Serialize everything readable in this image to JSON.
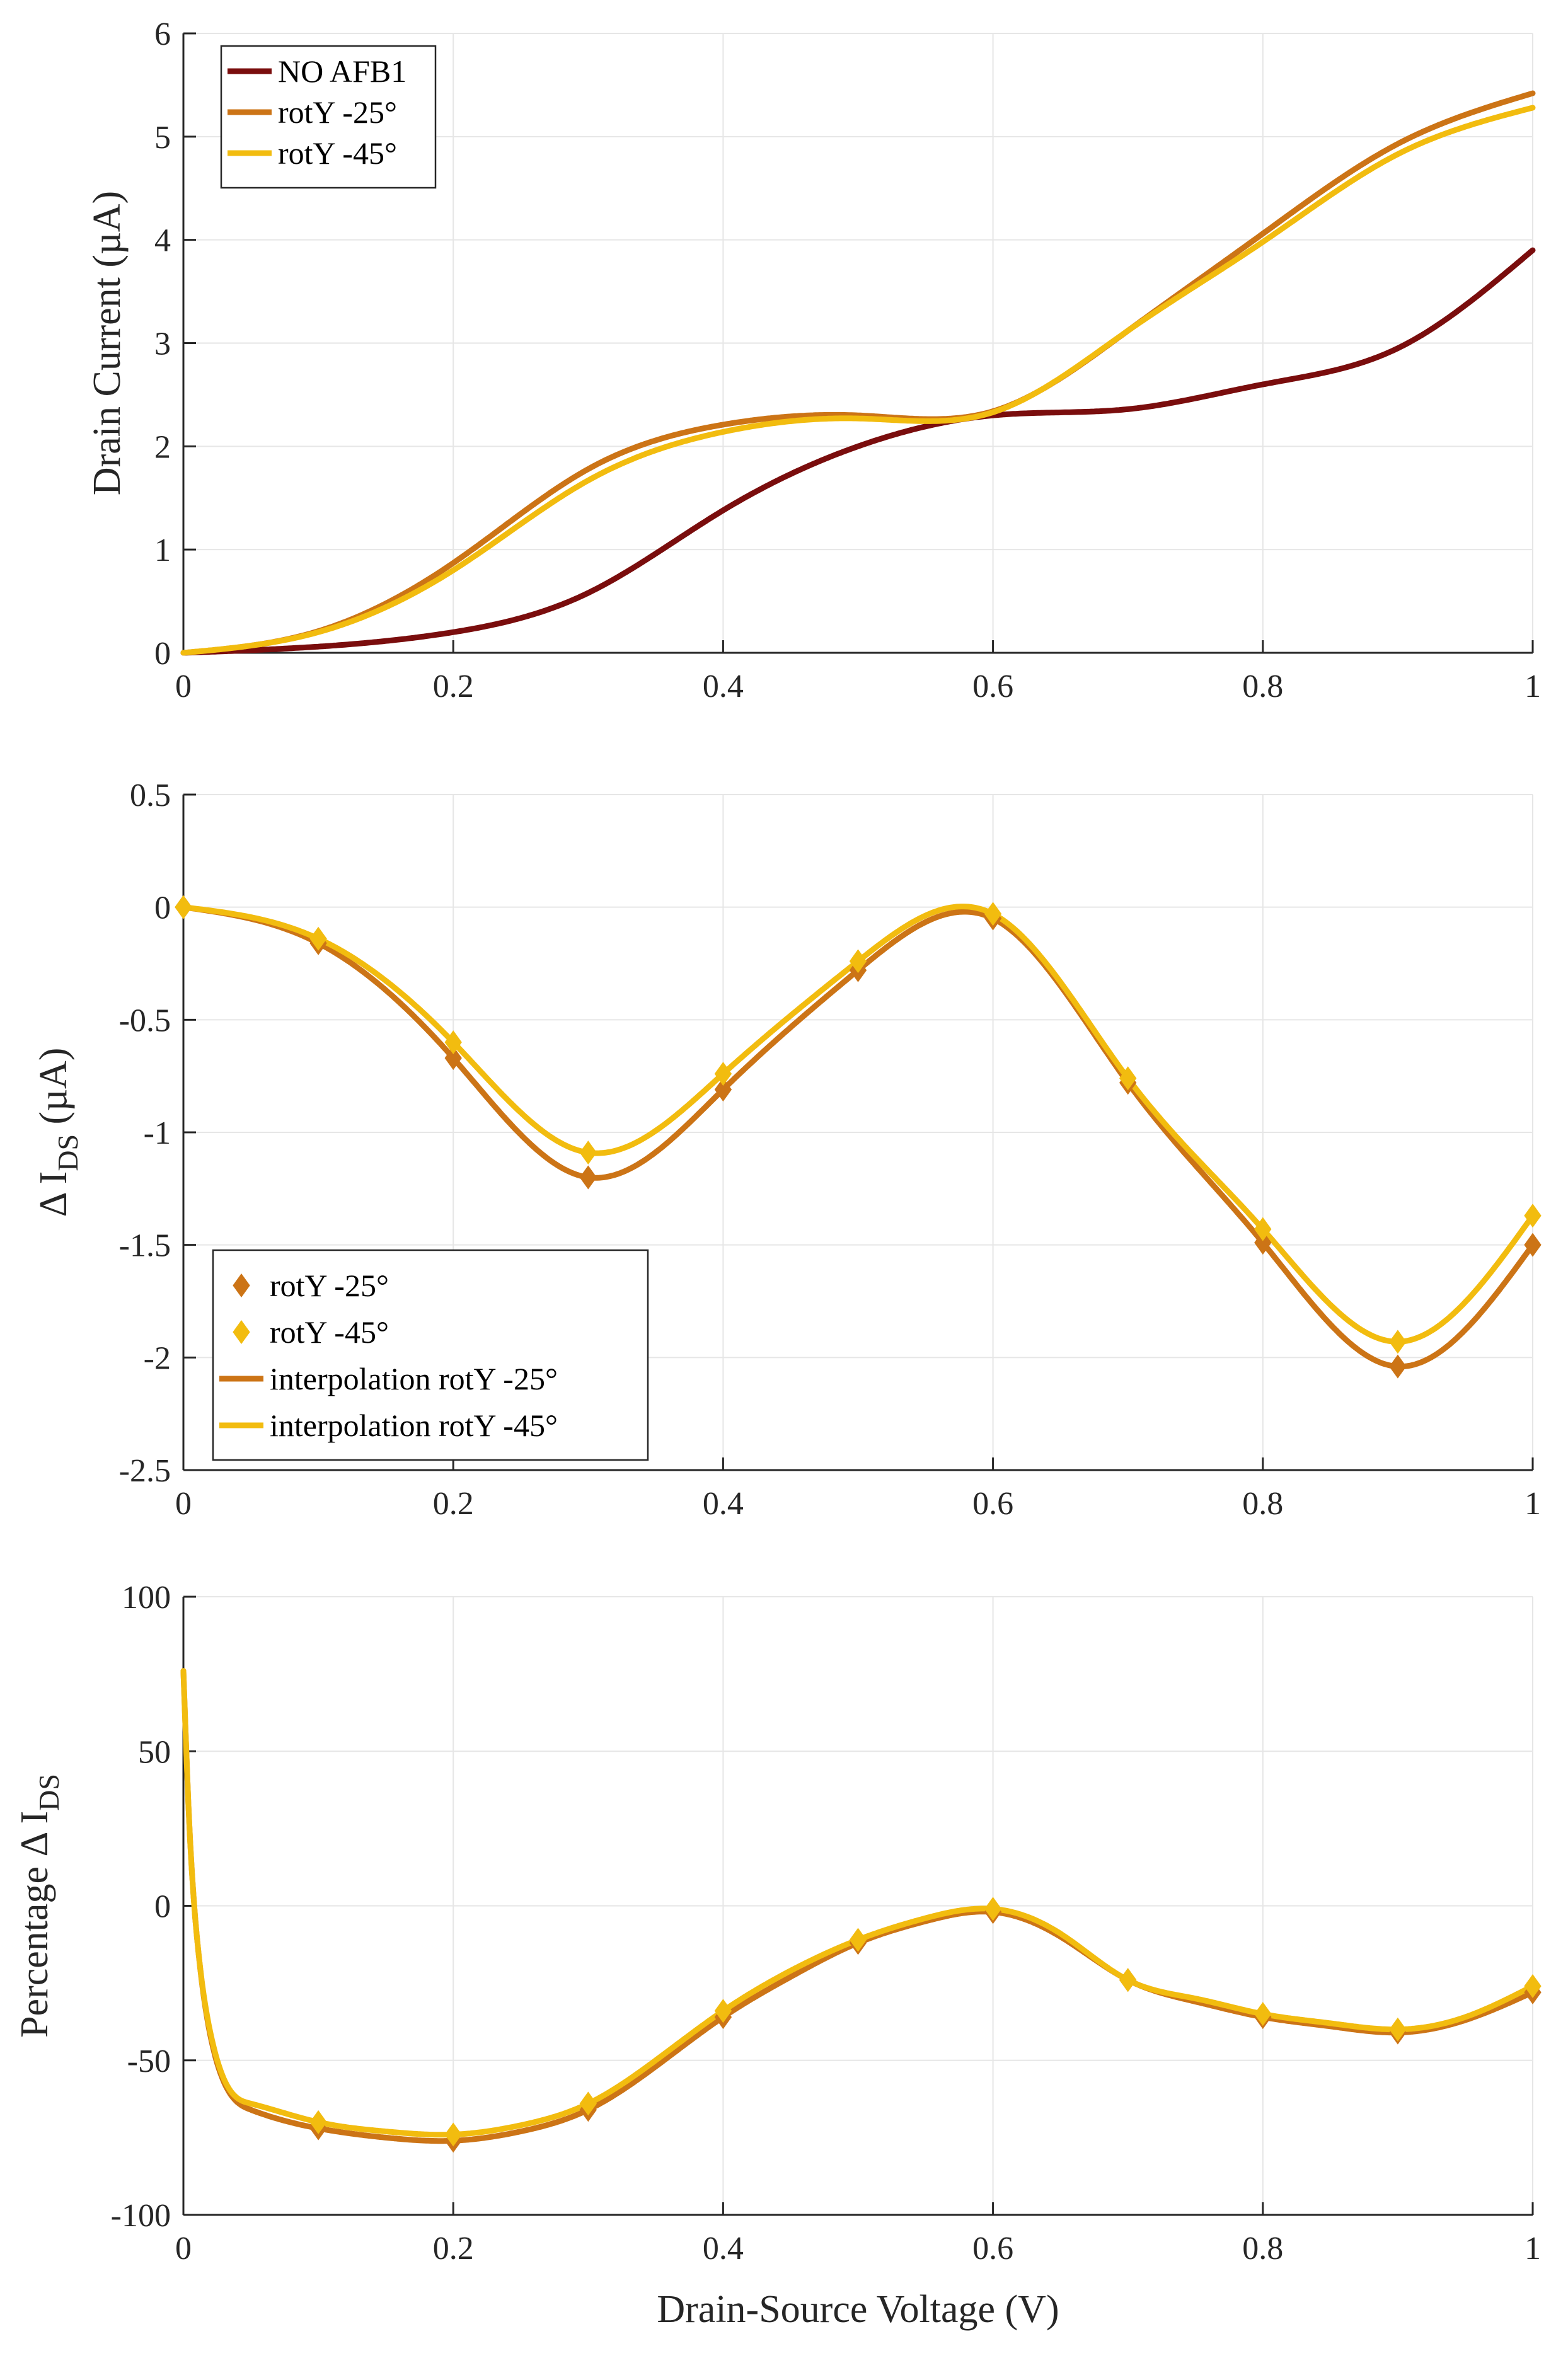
{
  "colors": {
    "no_afb1": "#7a0d0d",
    "rot25": "#cc7416",
    "rot45": "#f2bc0f"
  },
  "chart_data": [
    {
      "type": "line",
      "id": "drain-current",
      "title": "",
      "xlabel": "",
      "ylabel": "Drain Current (µA)",
      "xlim": [
        0,
        1
      ],
      "ylim": [
        0,
        6
      ],
      "xticks": [
        0,
        0.2,
        0.4,
        0.6,
        0.8,
        1
      ],
      "xtick_labels": [
        "0",
        "0.2",
        "0.4",
        "0.6",
        "0.8",
        "1"
      ],
      "yticks": [
        0,
        1,
        2,
        3,
        4,
        5,
        6
      ],
      "ytick_labels": [
        "0",
        "1",
        "2",
        "3",
        "4",
        "5",
        "6"
      ],
      "grid": true,
      "legend_position": "top-left",
      "x": [
        0,
        0.1,
        0.2,
        0.3,
        0.4,
        0.5,
        0.6,
        0.7,
        0.8,
        0.9,
        1.0
      ],
      "series": [
        {
          "name": "NO AFB1",
          "color_key": "no_afb1",
          "values": [
            0,
            0.06,
            0.2,
            0.58,
            1.38,
            2.0,
            2.3,
            2.36,
            2.6,
            2.95,
            3.9
          ]
        },
        {
          "name": "rotY -25°",
          "color_key": "rot25",
          "values": [
            0,
            0.21,
            0.87,
            1.78,
            2.21,
            2.3,
            2.34,
            3.12,
            4.06,
            4.93,
            5.42
          ]
        },
        {
          "name": "rotY -45°",
          "color_key": "rot45",
          "values": [
            0,
            0.2,
            0.8,
            1.67,
            2.14,
            2.27,
            2.33,
            3.12,
            3.98,
            4.83,
            5.28
          ]
        }
      ]
    },
    {
      "type": "line",
      "id": "delta-ids",
      "title": "",
      "xlabel": "",
      "ylabel": "Δ IDS (µA)",
      "ylabel_main": "Δ I",
      "ylabel_sub": "DS",
      "ylabel_unit": " (µA)",
      "xlim": [
        0,
        1
      ],
      "ylim": [
        -2.5,
        0.5
      ],
      "xticks": [
        0,
        0.2,
        0.4,
        0.6,
        0.8,
        1
      ],
      "xtick_labels": [
        "0",
        "0.2",
        "0.4",
        "0.6",
        "0.8",
        "1"
      ],
      "yticks": [
        -2.5,
        -2,
        -1.5,
        -1,
        -0.5,
        0,
        0.5
      ],
      "ytick_labels": [
        "-2.5",
        "-2",
        "-1.5",
        "-1",
        "-0.5",
        "0",
        "0.5"
      ],
      "grid": true,
      "legend_position": "bottom-left",
      "x": [
        0,
        0.1,
        0.2,
        0.3,
        0.4,
        0.5,
        0.6,
        0.7,
        0.8,
        0.9,
        1.0
      ],
      "series": [
        {
          "name": "rotY -25°",
          "kind": "marker",
          "color_key": "rot25",
          "values": [
            0,
            -0.16,
            -0.67,
            -1.2,
            -0.81,
            -0.28,
            -0.05,
            -0.78,
            -1.49,
            -2.04,
            -1.5
          ]
        },
        {
          "name": "rotY -45°",
          "kind": "marker",
          "color_key": "rot45",
          "values": [
            0,
            -0.14,
            -0.6,
            -1.09,
            -0.74,
            -0.24,
            -0.03,
            -0.76,
            -1.43,
            -1.93,
            -1.37
          ]
        },
        {
          "name": "interpolation rotY -25°",
          "kind": "line",
          "color_key": "rot25",
          "values": [
            0,
            -0.16,
            -0.67,
            -1.2,
            -0.81,
            -0.28,
            -0.05,
            -0.78,
            -1.49,
            -2.04,
            -1.5
          ]
        },
        {
          "name": "interpolation rotY -45°",
          "kind": "line",
          "color_key": "rot45",
          "values": [
            0,
            -0.14,
            -0.6,
            -1.09,
            -0.74,
            -0.24,
            -0.03,
            -0.76,
            -1.43,
            -1.93,
            -1.37
          ]
        }
      ]
    },
    {
      "type": "line",
      "id": "percentage-delta-ids",
      "title": "",
      "xlabel": "Drain-Source Voltage (V)",
      "ylabel": "Percentage Δ IDS",
      "ylabel_main": "Percentage Δ I",
      "ylabel_sub": "DS",
      "ylabel_unit": "",
      "xlim": [
        0,
        1
      ],
      "ylim": [
        -100,
        100
      ],
      "xticks": [
        0,
        0.2,
        0.4,
        0.6,
        0.8,
        1
      ],
      "xtick_labels": [
        "0",
        "0.2",
        "0.4",
        "0.6",
        "0.8",
        "1"
      ],
      "yticks": [
        -100,
        -50,
        0,
        50,
        100
      ],
      "ytick_labels": [
        "-100",
        "-50",
        "0",
        "50",
        "100"
      ],
      "grid": true,
      "legend_position": "none",
      "x": [
        0,
        0.1,
        0.2,
        0.3,
        0.4,
        0.5,
        0.6,
        0.7,
        0.8,
        0.9,
        1.0
      ],
      "series": [
        {
          "name": "rotY -25°",
          "kind": "marker",
          "color_key": "rot25",
          "values": [
            null,
            -72,
            -76,
            -66,
            -36,
            -12,
            -2,
            -24,
            -36,
            -41,
            -28
          ]
        },
        {
          "name": "rotY -45°",
          "kind": "marker",
          "color_key": "rot45",
          "values": [
            null,
            -70,
            -74,
            -64,
            -34,
            -11,
            -1,
            -24,
            -35,
            -40,
            -26
          ]
        },
        {
          "name": "interpolation rotY -25°",
          "kind": "line",
          "color_key": "rot25",
          "curve": [
            [
              0,
              76
            ],
            [
              0.004,
              30
            ],
            [
              0.01,
              -10
            ],
            [
              0.02,
              -42
            ],
            [
              0.03,
              -57
            ],
            [
              0.05,
              -66
            ],
            [
              0.1,
              -72
            ],
            [
              0.15,
              -75
            ],
            [
              0.2,
              -76
            ],
            [
              0.25,
              -73
            ],
            [
              0.3,
              -66
            ],
            [
              0.35,
              -52
            ],
            [
              0.4,
              -36
            ],
            [
              0.45,
              -23
            ],
            [
              0.5,
              -12
            ],
            [
              0.55,
              -5
            ],
            [
              0.6,
              -2
            ],
            [
              0.65,
              -10
            ],
            [
              0.7,
              -24
            ],
            [
              0.75,
              -31
            ],
            [
              0.8,
              -36
            ],
            [
              0.85,
              -39
            ],
            [
              0.9,
              -41
            ],
            [
              0.95,
              -37
            ],
            [
              1.0,
              -28
            ]
          ]
        },
        {
          "name": "interpolation rotY -45°",
          "kind": "line",
          "color_key": "rot45",
          "curve": [
            [
              0,
              76
            ],
            [
              0.004,
              30
            ],
            [
              0.01,
              -10
            ],
            [
              0.02,
              -41
            ],
            [
              0.03,
              -56
            ],
            [
              0.05,
              -64
            ],
            [
              0.1,
              -70
            ],
            [
              0.15,
              -73
            ],
            [
              0.2,
              -74
            ],
            [
              0.25,
              -71
            ],
            [
              0.3,
              -64
            ],
            [
              0.35,
              -50
            ],
            [
              0.4,
              -34
            ],
            [
              0.45,
              -21
            ],
            [
              0.5,
              -11
            ],
            [
              0.55,
              -4
            ],
            [
              0.6,
              -1
            ],
            [
              0.65,
              -9
            ],
            [
              0.7,
              -24
            ],
            [
              0.75,
              -30
            ],
            [
              0.8,
              -35
            ],
            [
              0.85,
              -38
            ],
            [
              0.9,
              -40
            ],
            [
              0.95,
              -36
            ],
            [
              1.0,
              -26
            ]
          ]
        }
      ]
    }
  ]
}
